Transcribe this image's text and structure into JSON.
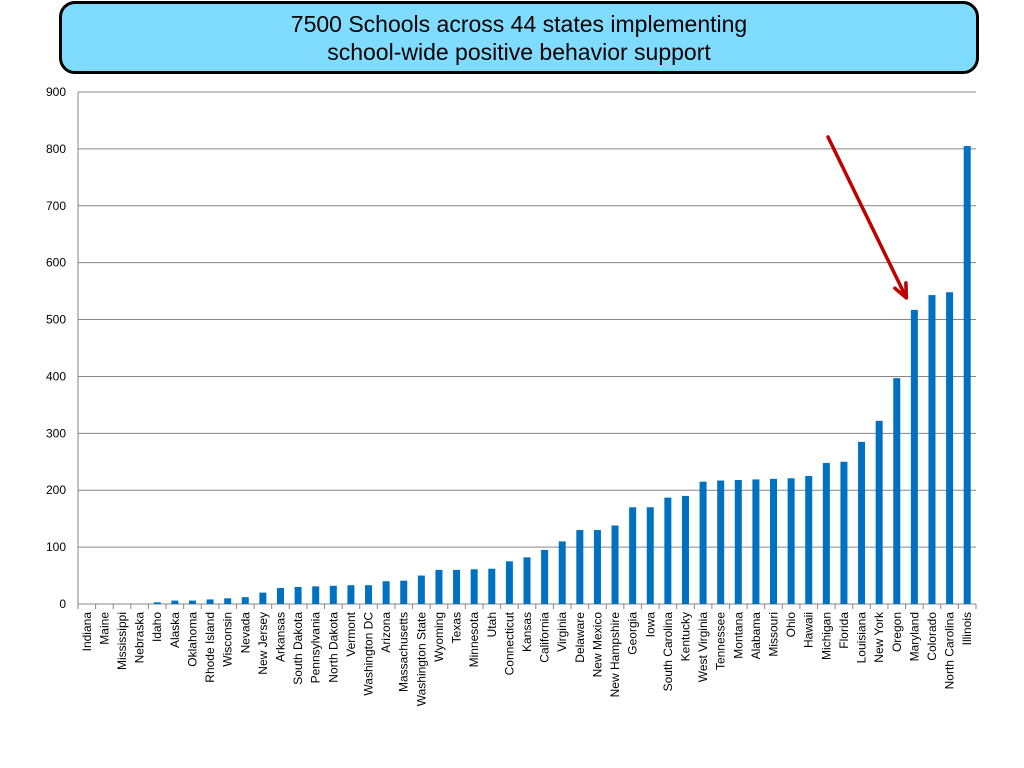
{
  "title": {
    "line1": "7500 Schools across 44 states implementing",
    "line2": "school-wide positive behavior support"
  },
  "colors": {
    "bar": "#0070c0",
    "arrow": "#c00000",
    "title_bg": "#7fdcff",
    "grid": "#868686"
  },
  "chart_data": {
    "type": "bar",
    "title": "7500 Schools across 44 states implementing school-wide positive behavior support",
    "xlabel": "",
    "ylabel": "",
    "ylim": [
      0,
      900
    ],
    "yticks": [
      0,
      100,
      200,
      300,
      400,
      500,
      600,
      700,
      800,
      900
    ],
    "grid": true,
    "legend": "none",
    "categories": [
      "Indiana",
      "Maine",
      "Mississippi",
      "Nebraska",
      "Idaho",
      "Alaska",
      "Oklahoma",
      "Rhode Island",
      "Wisconsin",
      "Nevada",
      "New Jersey",
      "Arkansas",
      "South Dakota",
      "Pennsylvania",
      "North Dakota",
      "Vermont",
      "Washington DC",
      "Arizona",
      "Massachusetts",
      "Washington State",
      "Wyoming",
      "Texas",
      "Minnesota",
      "Utah",
      "Connecticut",
      "Kansas",
      "California",
      "Virginia",
      "Delaware",
      "New Mexico",
      "New Hampshire",
      "Georgia",
      "Iowa",
      "South Carolina",
      "Kentucky",
      "West Virginia",
      "Tennessee",
      "Montana",
      "Alabama",
      "Missouri",
      "Ohio",
      "Hawaii",
      "Michigan",
      "Florida",
      "Louisiana",
      "New York",
      "Oregon",
      "Maryland",
      "Colorado",
      "North Carolina",
      "Illinois"
    ],
    "values": [
      0,
      0,
      0,
      0,
      3,
      6,
      6,
      8,
      10,
      12,
      20,
      28,
      30,
      31,
      32,
      33,
      33,
      40,
      41,
      50,
      60,
      60,
      61,
      62,
      75,
      82,
      95,
      110,
      130,
      130,
      138,
      170,
      170,
      187,
      190,
      215,
      217,
      218,
      219,
      220,
      221,
      225,
      248,
      250,
      285,
      322,
      397,
      517,
      543,
      548,
      805
    ],
    "annotations": [
      {
        "type": "arrow",
        "points_to": "Maryland"
      }
    ]
  }
}
